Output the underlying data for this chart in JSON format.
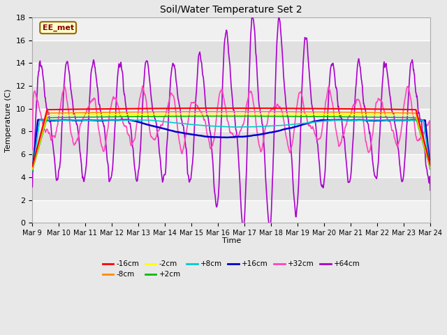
{
  "title": "Soil/Water Temperature Set 2",
  "xlabel": "Time",
  "ylabel": "Temperature (C)",
  "ylim": [
    0,
    18
  ],
  "xlim": [
    0,
    15
  ],
  "fig_facecolor": "#e8e8e8",
  "plot_facecolor": "#e8e8e8",
  "annotation_text": "EE_met",
  "annotation_bg": "#ffffcc",
  "annotation_border": "#996600",
  "series": {
    "-16cm": {
      "color": "#ff0000"
    },
    "-8cm": {
      "color": "#ff8c00"
    },
    "-2cm": {
      "color": "#ffff00"
    },
    "+2cm": {
      "color": "#00bb00"
    },
    "+8cm": {
      "color": "#00cccc"
    },
    "+16cm": {
      "color": "#0000cc"
    },
    "+32cm": {
      "color": "#ff44bb"
    },
    "+64cm": {
      "color": "#aa00cc"
    }
  },
  "xtick_labels": [
    "Mar 9",
    "Mar 10",
    "Mar 11",
    "Mar 12",
    "Mar 13",
    "Mar 14",
    "Mar 15",
    "Mar 16",
    "Mar 17",
    "Mar 18",
    "Mar 19",
    "Mar 20",
    "Mar 21",
    "Mar 22",
    "Mar 23",
    "Mar 24"
  ],
  "ytick_labels": [
    "0",
    "2",
    "4",
    "6",
    "8",
    "10",
    "12",
    "14",
    "16",
    "18"
  ],
  "num_points": 1080
}
